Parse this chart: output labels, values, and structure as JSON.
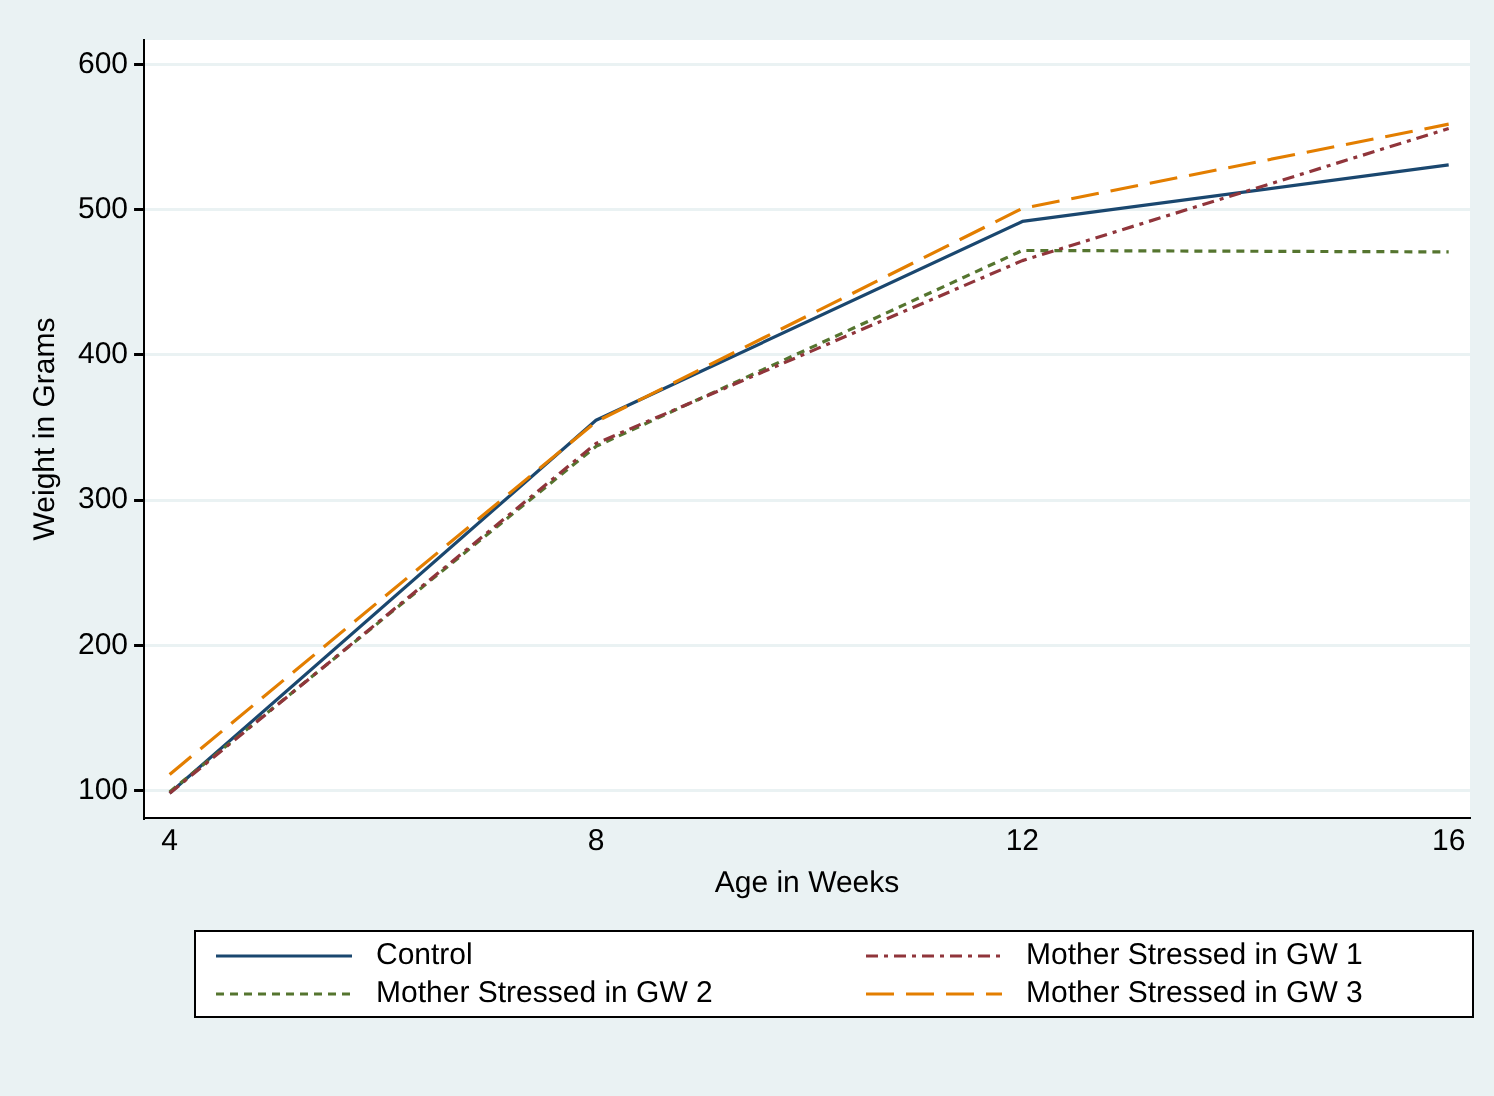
{
  "chart_data": {
    "type": "line",
    "xlabel": "Age in Weeks",
    "ylabel": "Weight in Grams",
    "x": [
      4,
      8,
      12,
      16
    ],
    "series": [
      {
        "name": "Control",
        "color": "#1a476f",
        "line_style": "solid",
        "values": [
          98,
          355,
          492,
          531
        ]
      },
      {
        "name": "Mother Stressed in GW 1",
        "color": "#90353b",
        "line_style": "dashdot",
        "values": [
          98,
          339,
          465,
          556
        ]
      },
      {
        "name": "Mother Stressed in GW 2",
        "color": "#55752f",
        "line_style": "dotted",
        "values": [
          99,
          337,
          472,
          471
        ]
      },
      {
        "name": "Mother Stressed in GW 3",
        "color": "#e37e00",
        "line_style": "dashed",
        "values": [
          111,
          354,
          501,
          559
        ]
      }
    ],
    "xlim": [
      3.76,
      16.2
    ],
    "xticks": [
      4,
      8,
      12,
      16
    ],
    "ylim": [
      81,
      617
    ],
    "yticks": [
      100,
      200,
      300,
      400,
      500,
      600
    ],
    "grid": "y",
    "legend": "bottom",
    "marker": "none"
  }
}
